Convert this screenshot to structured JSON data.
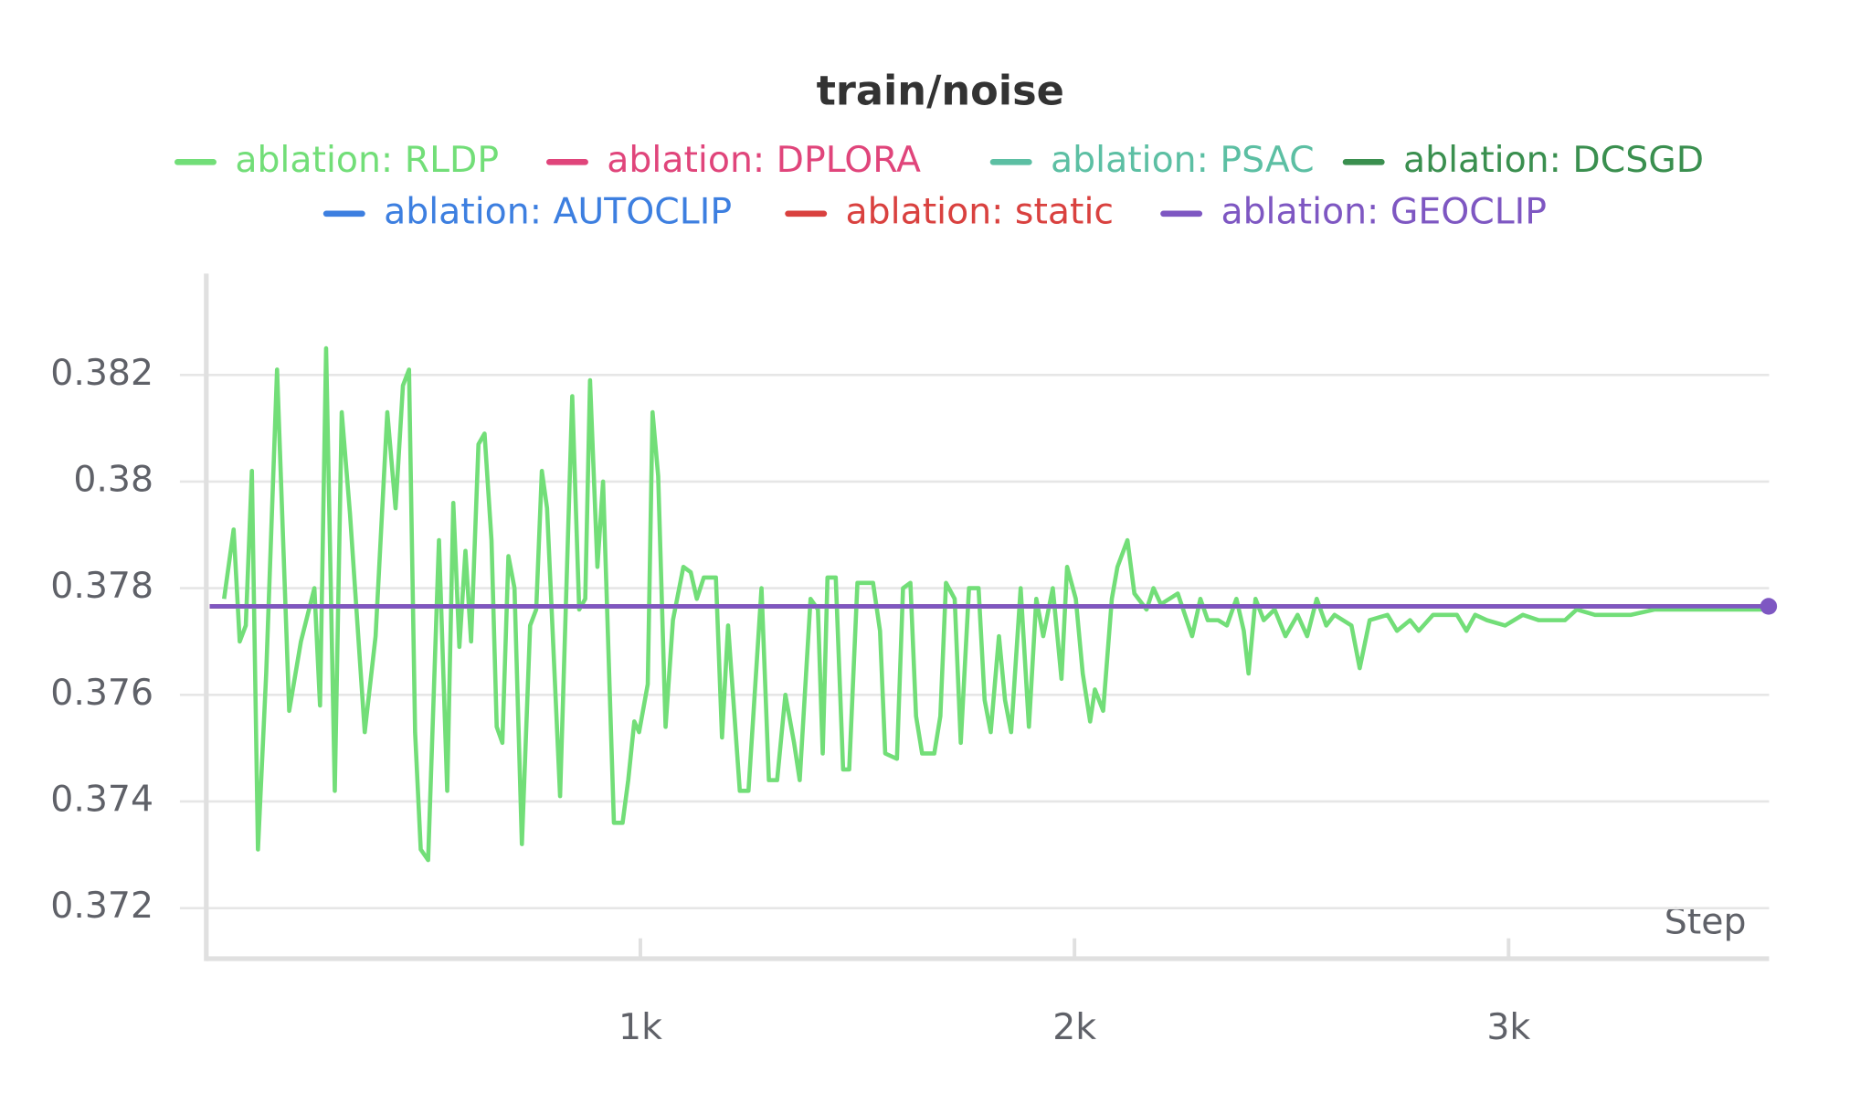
{
  "chart_data": {
    "type": "line",
    "title": "train/noise",
    "x_label": "Step",
    "xlim": [
      0,
      3600
    ],
    "xticks": [
      {
        "value": 1000,
        "label": "1k"
      },
      {
        "value": 2000,
        "label": "2k"
      },
      {
        "value": 3000,
        "label": "3k"
      }
    ],
    "ylim": [
      0.37105,
      0.3839
    ],
    "yticks": [
      0.372,
      0.374,
      0.376,
      0.378,
      0.38,
      0.382
    ],
    "grid": true,
    "series": [
      {
        "name": "ablation: RLDP",
        "color": "#72de78",
        "x": [
          41,
          63,
          77,
          91,
          105,
          119,
          138,
          163,
          191,
          218,
          249,
          262,
          276,
          296,
          312,
          331,
          365,
          390,
          417,
          436,
          453,
          467,
          481,
          494,
          511,
          536,
          555,
          569,
          583,
          597,
          610,
          627,
          641,
          657,
          669,
          682,
          696,
          710,
          727,
          746,
          760,
          773,
          785,
          815,
          843,
          859,
          873,
          884,
          901,
          914,
          939,
          959,
          972,
          986,
          997,
          1017,
          1028,
          1041,
          1058,
          1075,
          1099,
          1116,
          1130,
          1146,
          1174,
          1188,
          1202,
          1229,
          1249,
          1279,
          1296,
          1315,
          1334,
          1354,
          1367,
          1392,
          1409,
          1420,
          1431,
          1450,
          1467,
          1481,
          1500,
          1536,
          1552,
          1564,
          1591,
          1605,
          1622,
          1635,
          1649,
          1677,
          1691,
          1704,
          1724,
          1738,
          1757,
          1779,
          1793,
          1807,
          1826,
          1840,
          1854,
          1876,
          1895,
          1912,
          1928,
          1950,
          1970,
          1983,
          2003,
          2019,
          2036,
          2047,
          2066,
          2086,
          2099,
          2122,
          2138,
          2166,
          2182,
          2199,
          2238,
          2271,
          2290,
          2307,
          2331,
          2351,
          2373,
          2390,
          2401,
          2417,
          2436,
          2461,
          2486,
          2514,
          2536,
          2558,
          2580,
          2599,
          2638,
          2657,
          2680,
          2721,
          2743,
          2773,
          2793,
          2826,
          2881,
          2903,
          2923,
          2950,
          2992,
          3033,
          3069,
          3130,
          3157,
          3199,
          3240,
          3282,
          3337,
          3392,
          3448,
          3517,
          3599
        ],
        "values": [
          0.3778,
          0.3791,
          0.377,
          0.3773,
          0.3802,
          0.3731,
          0.3764,
          0.3821,
          0.3757,
          0.377,
          0.378,
          0.3758,
          0.3825,
          0.3742,
          0.3813,
          0.3794,
          0.3753,
          0.3771,
          0.3813,
          0.3795,
          0.3818,
          0.3821,
          0.3753,
          0.3731,
          0.3729,
          0.3789,
          0.3742,
          0.3796,
          0.3769,
          0.3787,
          0.377,
          0.3807,
          0.3809,
          0.3789,
          0.3754,
          0.3751,
          0.3786,
          0.378,
          0.3732,
          0.3773,
          0.3776,
          0.3802,
          0.3795,
          0.3741,
          0.3816,
          0.3776,
          0.3778,
          0.3819,
          0.3784,
          0.38,
          0.3736,
          0.3736,
          0.3744,
          0.3755,
          0.3753,
          0.3762,
          0.3813,
          0.3801,
          0.3754,
          0.3774,
          0.3784,
          0.3783,
          0.3778,
          0.3782,
          0.3782,
          0.3752,
          0.3773,
          0.3742,
          0.3742,
          0.378,
          0.3744,
          0.3744,
          0.376,
          0.3751,
          0.3744,
          0.3778,
          0.3776,
          0.3749,
          0.3782,
          0.3782,
          0.3746,
          0.3746,
          0.3781,
          0.3781,
          0.3772,
          0.3749,
          0.3748,
          0.378,
          0.3781,
          0.3756,
          0.3749,
          0.3749,
          0.3756,
          0.3781,
          0.3778,
          0.3751,
          0.378,
          0.378,
          0.3759,
          0.3753,
          0.3771,
          0.3759,
          0.3753,
          0.378,
          0.3754,
          0.3778,
          0.3771,
          0.378,
          0.3763,
          0.3784,
          0.3778,
          0.3764,
          0.3755,
          0.3761,
          0.3757,
          0.3778,
          0.3784,
          0.3789,
          0.3779,
          0.3776,
          0.378,
          0.3777,
          0.3779,
          0.3771,
          0.3778,
          0.3774,
          0.3774,
          0.3773,
          0.3778,
          0.3772,
          0.3764,
          0.3778,
          0.3774,
          0.3776,
          0.3771,
          0.3775,
          0.3771,
          0.3778,
          0.3773,
          0.3775,
          0.3773,
          0.3765,
          0.3774,
          0.3775,
          0.3772,
          0.3774,
          0.3772,
          0.3775,
          0.3775,
          0.3772,
          0.3775,
          0.3774,
          0.3773,
          0.3775,
          0.3774,
          0.3774,
          0.3776,
          0.3775,
          0.3775,
          0.3775,
          0.3776,
          0.3776,
          0.3776,
          0.3776,
          0.3776
        ]
      },
      {
        "name": "ablation: DPLORA",
        "color": "#e0457b",
        "x": [
          8,
          3599
        ],
        "values": [
          0.37766,
          0.37766
        ]
      },
      {
        "name": "ablation: PSAC",
        "color": "#5cbfa3",
        "x": [
          8,
          3599
        ],
        "values": [
          0.37766,
          0.37766
        ]
      },
      {
        "name": "ablation: DCSGD",
        "color": "#3a8f4f",
        "x": [
          8,
          3599
        ],
        "values": [
          0.37766,
          0.37766
        ]
      },
      {
        "name": "ablation: AUTOCLIP",
        "color": "#3d7fe0",
        "x": [
          8,
          3599
        ],
        "values": [
          0.37766,
          0.37766
        ]
      },
      {
        "name": "ablation: static",
        "color": "#d9413f",
        "x": [
          8,
          3599
        ],
        "values": [
          0.37766,
          0.37766
        ]
      },
      {
        "name": "ablation: GEOCLIP",
        "color": "#7e57c2",
        "x": [
          8,
          3599
        ],
        "values": [
          0.37766,
          0.37766
        ]
      }
    ]
  }
}
